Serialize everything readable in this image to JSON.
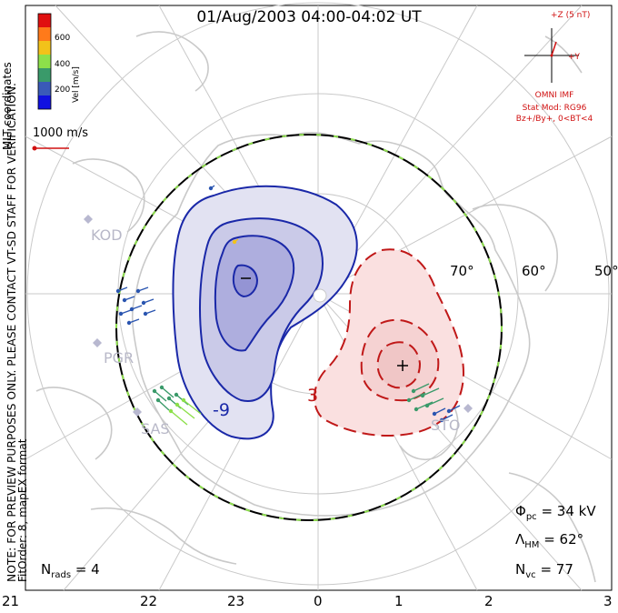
{
  "header": {
    "title": "01/Aug/2003 04:00-04:02 UT"
  },
  "side_notes": {
    "coords": "MLT coordinates",
    "preview": "NOTE: FOR PREVIEW PURPOSES ONLY. PLEASE CONTACT VT-SD STAFF FOR VERIFICATION.",
    "fit": "FitOrder: 8, mapEX format"
  },
  "colorbar": {
    "label": "Vel [m/s]",
    "ticks": [
      "600",
      "400",
      "200"
    ],
    "colors": [
      "#e01010",
      "#ff7a1a",
      "#f2c21a",
      "#8de04a",
      "#3a9a6a",
      "#3a5ab8",
      "#1010e0"
    ]
  },
  "scale_vector": {
    "label": "1000 m/s",
    "color": "#d01010"
  },
  "imf": {
    "z_label": "+Z (5 nT)",
    "y_label": "+Y",
    "source": "OMNI IMF",
    "stat_mod": "Stat Mod: RG96",
    "condition": "Bz+/By+, 0<BT<4",
    "color": "#d01010"
  },
  "latitudes": [
    "70°",
    "60°",
    "50°"
  ],
  "radars": [
    "KOD",
    "PGR",
    "SAS",
    "STO"
  ],
  "contour_labels": {
    "negative": "-9",
    "positive": "3"
  },
  "stats": {
    "phi_sym": "Φ",
    "phi_sub": "pc",
    "phi_val": "= 34 kV",
    "lam_sym": "Λ",
    "lam_sub": "HM",
    "lam_val": "= 62°",
    "nvc_sym": "N",
    "nvc_sub": "vc",
    "nvc_val": "= 77",
    "nrads_sym": "N",
    "nrads_sub": "rads",
    "nrads_val": "= 4"
  },
  "mlt_axis": [
    "21",
    "22",
    "23",
    "0",
    "1",
    "2",
    "3"
  ]
}
